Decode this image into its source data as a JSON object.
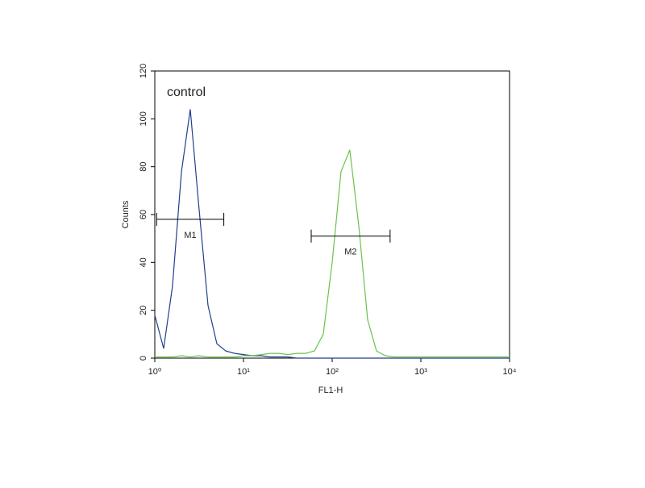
{
  "chart_data": {
    "type": "line",
    "x_label": "FL1-H",
    "y_label": "Counts",
    "annotation": "control",
    "xscale": "log",
    "xlim": [
      1,
      10000
    ],
    "xticks": [
      {
        "value": 1,
        "label": "10⁰"
      },
      {
        "value": 10,
        "label": "10¹"
      },
      {
        "value": 100,
        "label": "10²"
      },
      {
        "value": 1000,
        "label": "10³"
      },
      {
        "value": 10000,
        "label": "10⁴"
      }
    ],
    "ylim": [
      0,
      120
    ],
    "yticks": [
      0,
      20,
      40,
      60,
      80,
      100,
      120
    ],
    "x": [
      1,
      1.26,
      1.58,
      2,
      2.51,
      3.16,
      3.98,
      5.01,
      6.31,
      7.94,
      10,
      12.6,
      15.8,
      20,
      25.1,
      31.6,
      39.8,
      50.1,
      63.1,
      79.4,
      100,
      126,
      158,
      200,
      251,
      316,
      398,
      501,
      631,
      794,
      1000,
      1259,
      1585,
      1995,
      2512,
      3162,
      3981,
      5012,
      6310,
      7943,
      10000
    ],
    "series": [
      {
        "color": "#1f3f8f",
        "values": [
          18,
          4,
          30,
          78,
          104,
          62,
          22,
          6,
          3,
          2,
          1.5,
          1,
          1,
          0.5,
          0.5,
          0.5,
          0,
          0,
          0,
          0,
          0,
          0,
          0,
          0,
          0,
          0,
          0,
          0,
          0,
          0,
          0,
          0,
          0,
          0,
          0,
          0,
          0,
          0,
          0,
          0,
          0
        ]
      },
      {
        "color": "#6cc24a",
        "values": [
          0.5,
          0.5,
          0.5,
          1,
          0.5,
          1,
          0.5,
          0.5,
          0.5,
          0.5,
          1,
          1,
          1.5,
          2,
          2,
          1.5,
          2,
          2,
          3,
          10,
          40,
          78,
          87,
          55,
          16,
          3,
          1,
          0.5,
          0.5,
          0.5,
          0.5,
          0.5,
          0.5,
          0.5,
          0.5,
          0.5,
          0.5,
          0.5,
          0.5,
          0.5,
          0.5
        ]
      }
    ],
    "markers": [
      {
        "label": "M1",
        "range": [
          1.05,
          6
        ],
        "y": 58
      },
      {
        "label": "M2",
        "range": [
          58,
          450
        ],
        "y": 51
      }
    ]
  }
}
